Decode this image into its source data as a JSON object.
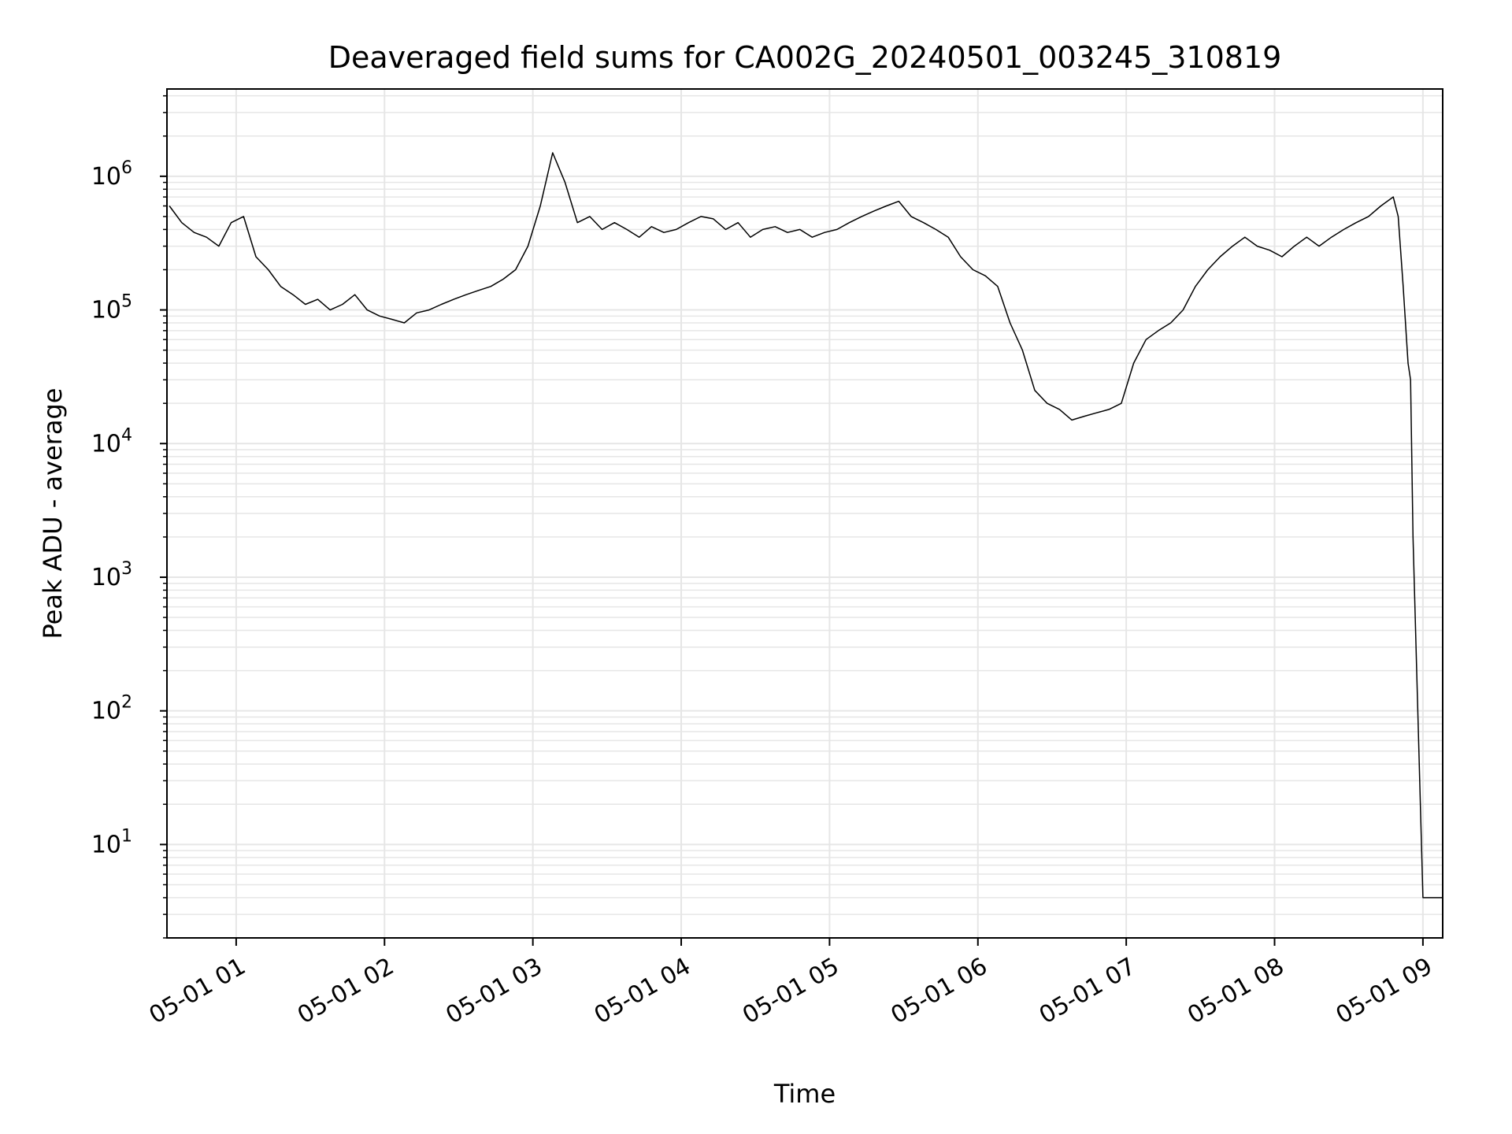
{
  "chart_data": {
    "type": "line",
    "title": "Deaveraged field sums for CA002G_20240501_003245_310819",
    "xlabel": "Time",
    "ylabel": "Peak ADU - average",
    "yscale": "log",
    "grid": true,
    "line_color": "#000000",
    "grid_color": "#e6e6e6",
    "xlim": [
      "2024-05-01 00:32",
      "2024-05-01 09:08"
    ],
    "ylim": [
      2,
      4500000
    ],
    "xticks": [
      {
        "label": "05-01 01",
        "t": "01:00"
      },
      {
        "label": "05-01 02",
        "t": "02:00"
      },
      {
        "label": "05-01 03",
        "t": "03:00"
      },
      {
        "label": "05-01 04",
        "t": "04:00"
      },
      {
        "label": "05-01 05",
        "t": "05:00"
      },
      {
        "label": "05-01 06",
        "t": "06:00"
      },
      {
        "label": "05-01 07",
        "t": "07:00"
      },
      {
        "label": "05-01 08",
        "t": "08:00"
      },
      {
        "label": "05-01 09",
        "t": "09:00"
      }
    ],
    "yticks": [
      {
        "base": "10",
        "exp": "1",
        "value": 10
      },
      {
        "base": "10",
        "exp": "2",
        "value": 100
      },
      {
        "base": "10",
        "exp": "3",
        "value": 1000
      },
      {
        "base": "10",
        "exp": "4",
        "value": 10000
      },
      {
        "base": "10",
        "exp": "5",
        "value": 100000
      },
      {
        "base": "10",
        "exp": "6",
        "value": 1000000
      }
    ],
    "series": [
      {
        "x": [
          "00:33",
          "00:38",
          "00:43",
          "00:48",
          "00:53",
          "00:58",
          "01:03",
          "01:08",
          "01:13",
          "01:18",
          "01:23",
          "01:28",
          "01:33",
          "01:38",
          "01:43",
          "01:48",
          "01:53",
          "01:58",
          "02:03",
          "02:08",
          "02:13",
          "02:18",
          "02:23",
          "02:28",
          "02:33",
          "02:38",
          "02:43",
          "02:48",
          "02:53",
          "02:58",
          "03:03",
          "03:08",
          "03:13",
          "03:18",
          "03:23",
          "03:28",
          "03:33",
          "03:38",
          "03:43",
          "03:48",
          "03:53",
          "03:58",
          "04:03",
          "04:08",
          "04:13",
          "04:18",
          "04:23",
          "04:28",
          "04:33",
          "04:38",
          "04:43",
          "04:48",
          "04:53",
          "04:58",
          "05:03",
          "05:08",
          "05:13",
          "05:18",
          "05:23",
          "05:28",
          "05:33",
          "05:38",
          "05:43",
          "05:48",
          "05:53",
          "05:58",
          "06:03",
          "06:08",
          "06:13",
          "06:18",
          "06:23",
          "06:28",
          "06:33",
          "06:38",
          "06:43",
          "06:48",
          "06:53",
          "06:58",
          "07:03",
          "07:08",
          "07:13",
          "07:18",
          "07:23",
          "07:28",
          "07:33",
          "07:38",
          "07:43",
          "07:48",
          "07:53",
          "07:58",
          "08:03",
          "08:08",
          "08:13",
          "08:18",
          "08:23",
          "08:28",
          "08:33",
          "08:38",
          "08:43",
          "08:48",
          "08:50",
          "08:52",
          "08:54",
          "08:55",
          "08:56",
          "09:00",
          "09:05",
          "09:08"
        ],
        "y": [
          600000,
          450000,
          380000,
          350000,
          300000,
          450000,
          500000,
          250000,
          200000,
          150000,
          130000,
          110000,
          120000,
          100000,
          110000,
          130000,
          100000,
          90000,
          85000,
          80000,
          95000,
          100000,
          110000,
          120000,
          130000,
          140000,
          150000,
          170000,
          200000,
          300000,
          600000,
          1500000,
          900000,
          450000,
          500000,
          400000,
          450000,
          400000,
          350000,
          420000,
          380000,
          400000,
          450000,
          500000,
          480000,
          400000,
          450000,
          350000,
          400000,
          420000,
          380000,
          400000,
          350000,
          380000,
          400000,
          450000,
          500000,
          550000,
          600000,
          650000,
          500000,
          450000,
          400000,
          350000,
          250000,
          200000,
          180000,
          150000,
          80000,
          50000,
          25000,
          20000,
          18000,
          15000,
          16000,
          17000,
          18000,
          20000,
          40000,
          60000,
          70000,
          80000,
          100000,
          150000,
          200000,
          250000,
          300000,
          350000,
          300000,
          280000,
          250000,
          300000,
          350000,
          300000,
          350000,
          400000,
          450000,
          500000,
          600000,
          700000,
          500000,
          150000,
          40000,
          30000,
          2000,
          4,
          4,
          4
        ]
      }
    ]
  }
}
